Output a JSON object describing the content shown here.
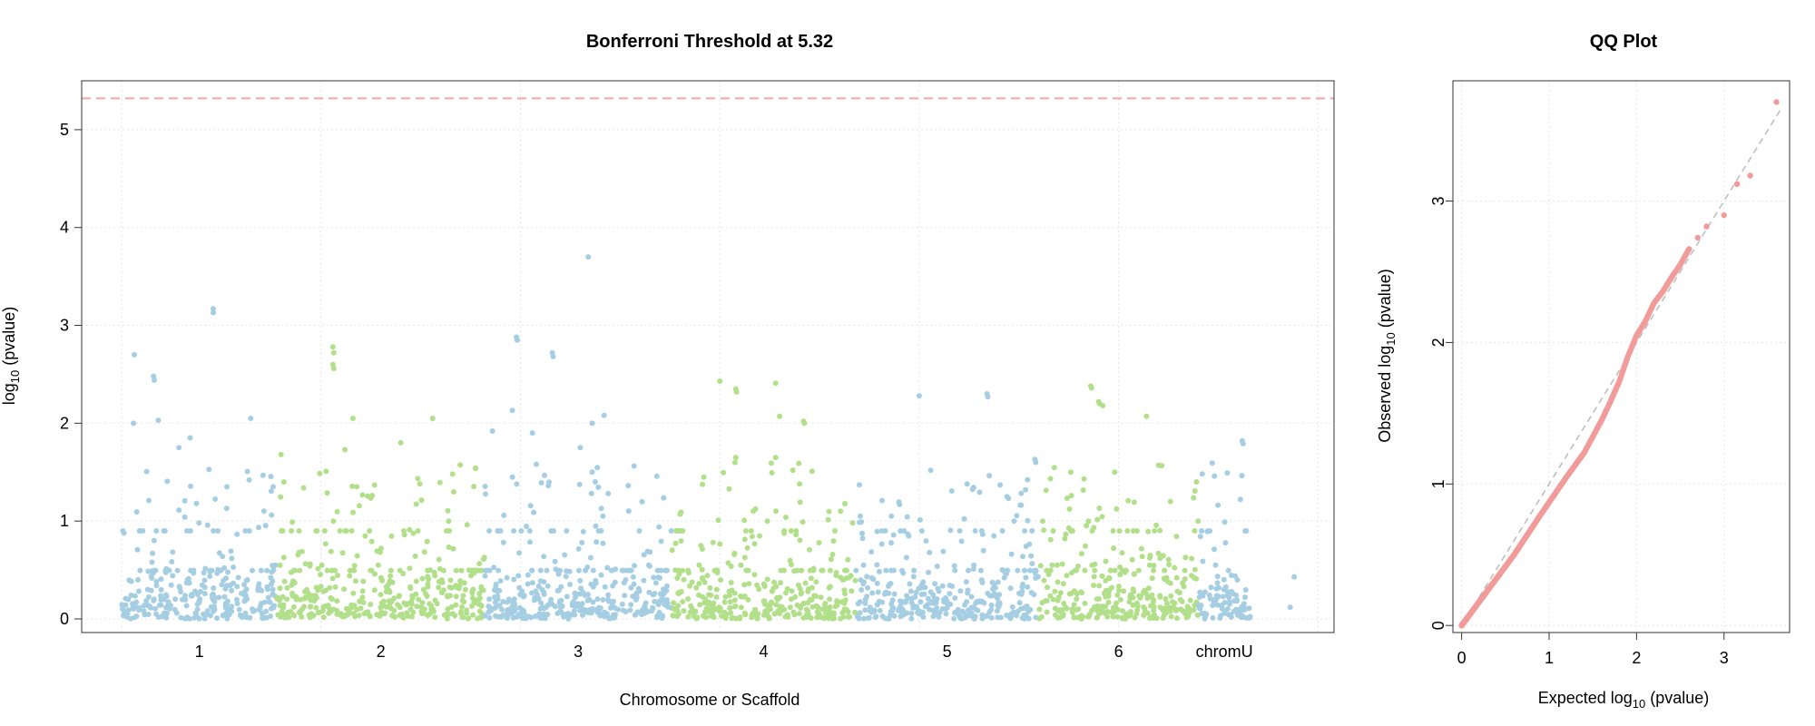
{
  "manhattan": {
    "title": "Bonferroni Threshold at 5.32",
    "xlabel": "Chromosome or Scaffold",
    "ylabel_base": "log",
    "ylabel_sub": "10",
    "ylabel_rest": " (pvalue)"
  },
  "qq": {
    "title": "QQ Plot",
    "xlabel_pre": "Expected  log",
    "xlabel_sub": "10",
    "xlabel_post": " (pvalue)",
    "ylabel_pre": "Observed  log",
    "ylabel_sub": "10",
    "ylabel_post": " (pvalue)"
  },
  "colors": {
    "odd_chrom": "#A6CEE3",
    "even_chrom": "#B2DF8A",
    "threshold": "#F4A6A6",
    "qq_points": "#F29B9B",
    "qq_line": "#BBBBBB",
    "grid": "#E6E6E6"
  },
  "chart_data": [
    {
      "type": "scatter",
      "name": "manhattan",
      "title": "Bonferroni Threshold at 5.32",
      "xlabel": "Chromosome or Scaffold",
      "ylabel": "log10 (pvalue)",
      "ylim": [
        0,
        5.5
      ],
      "yticks": [
        0,
        1,
        2,
        3,
        4,
        5
      ],
      "threshold": 5.32,
      "grid": true,
      "chromosomes": [
        {
          "label": "1",
          "start": 0,
          "end": 19.5,
          "color": "odd_chrom",
          "peaks": [
            [
              1.6,
              2.7
            ],
            [
              1.5,
              2.0
            ],
            [
              4.0,
              2.48
            ],
            [
              4.1,
              2.44
            ],
            [
              4.6,
              2.03
            ],
            [
              7.2,
              1.75
            ],
            [
              8.6,
              1.85
            ],
            [
              11.5,
              3.17
            ],
            [
              11.5,
              3.13
            ],
            [
              13.2,
              1.35
            ],
            [
              16.2,
              2.05
            ],
            [
              16.0,
              1.42
            ],
            [
              19.0,
              1.35
            ]
          ]
        },
        {
          "label": "2",
          "start": 19.5,
          "end": 45.5,
          "color": "even_chrom",
          "peaks": [
            [
              20.0,
              1.68
            ],
            [
              26.5,
              2.78
            ],
            [
              26.6,
              2.72
            ],
            [
              26.5,
              2.6
            ],
            [
              26.6,
              2.56
            ],
            [
              28.0,
              1.73
            ],
            [
              29.0,
              2.05
            ],
            [
              29.5,
              1.35
            ],
            [
              35.0,
              1.8
            ],
            [
              39.0,
              2.05
            ],
            [
              41.5,
              1.48
            ]
          ]
        },
        {
          "label": "3",
          "start": 45.5,
          "end": 69.0,
          "color": "odd_chrom",
          "peaks": [
            [
              46.5,
              1.92
            ],
            [
              49.0,
              2.13
            ],
            [
              49.5,
              2.88
            ],
            [
              49.6,
              2.85
            ],
            [
              49.0,
              1.45
            ],
            [
              51.5,
              1.9
            ],
            [
              52.0,
              1.58
            ],
            [
              54.0,
              2.72
            ],
            [
              54.1,
              2.68
            ],
            [
              57.5,
              1.75
            ],
            [
              58.5,
              3.7
            ],
            [
              59.0,
              2.0
            ],
            [
              60.5,
              2.08
            ],
            [
              59.0,
              1.5
            ]
          ]
        },
        {
          "label": "4",
          "start": 69.0,
          "end": 92.0,
          "color": "even_chrom",
          "peaks": [
            [
              73.0,
              1.45
            ],
            [
              75.0,
              2.43
            ],
            [
              77.0,
              2.35
            ],
            [
              77.1,
              2.32
            ],
            [
              77.0,
              1.65
            ],
            [
              82.0,
              2.41
            ],
            [
              82.5,
              2.07
            ],
            [
              85.5,
              2.02
            ],
            [
              85.6,
              2.0
            ],
            [
              85.0,
              1.38
            ],
            [
              82.0,
              1.65
            ]
          ]
        },
        {
          "label": "5",
          "start": 92.0,
          "end": 115.0,
          "color": "odd_chrom",
          "peaks": [
            [
              92.5,
              1.37
            ],
            [
              96.5,
              1.05
            ],
            [
              100.0,
              2.28
            ],
            [
              106.0,
              1.38
            ],
            [
              108.5,
              2.3
            ],
            [
              108.6,
              2.27
            ],
            [
              111.0,
              1.25
            ],
            [
              114.5,
              1.63
            ],
            [
              114.6,
              1.6
            ]
          ]
        },
        {
          "label": "6",
          "start": 115.0,
          "end": 135.0,
          "color": "even_chrom",
          "peaks": [
            [
              119.0,
              1.5
            ],
            [
              121.5,
              2.38
            ],
            [
              121.6,
              2.36
            ],
            [
              122.5,
              2.22
            ],
            [
              122.6,
              2.2
            ],
            [
              123.0,
              2.18
            ],
            [
              124.5,
              1.5
            ],
            [
              128.5,
              2.07
            ],
            [
              130.0,
              1.57
            ],
            [
              131.5,
              1.2
            ]
          ]
        },
        {
          "label": "chromU",
          "start": 135.0,
          "end": 141.5,
          "color": "odd_chrom",
          "peaks": [
            [
              137.0,
              1.46
            ],
            [
              140.5,
              1.82
            ],
            [
              140.6,
              1.79
            ],
            [
              147.0,
              0.43
            ],
            [
              146.5,
              0.12
            ]
          ]
        }
      ],
      "xlim": [
        -5,
        152
      ]
    },
    {
      "type": "scatter",
      "name": "qq",
      "title": "QQ Plot",
      "xlabel": "Expected log10 (pvalue)",
      "ylabel": "Observed log10 (pvalue)",
      "xlim": [
        -0.1,
        3.75
      ],
      "ylim": [
        -0.05,
        3.85
      ],
      "xticks": [
        0,
        1,
        2,
        3
      ],
      "yticks": [
        0,
        1,
        2,
        3
      ],
      "grid": true,
      "reference_line": [
        [
          0,
          0
        ],
        [
          3.65,
          3.65
        ]
      ],
      "curve_points": [
        [
          0.0,
          0.0
        ],
        [
          0.3,
          0.25
        ],
        [
          0.6,
          0.5
        ],
        [
          0.9,
          0.78
        ],
        [
          1.2,
          1.05
        ],
        [
          1.4,
          1.22
        ],
        [
          1.6,
          1.45
        ],
        [
          1.7,
          1.58
        ],
        [
          1.8,
          1.72
        ],
        [
          1.9,
          1.9
        ],
        [
          2.0,
          2.05
        ],
        [
          2.1,
          2.15
        ],
        [
          2.2,
          2.28
        ],
        [
          2.3,
          2.36
        ],
        [
          2.4,
          2.46
        ],
        [
          2.5,
          2.55
        ],
        [
          2.6,
          2.66
        ],
        [
          2.7,
          2.74
        ],
        [
          2.8,
          2.82
        ],
        [
          3.0,
          2.9
        ],
        [
          3.15,
          3.12
        ],
        [
          3.3,
          3.18
        ],
        [
          3.6,
          3.7
        ]
      ]
    }
  ]
}
